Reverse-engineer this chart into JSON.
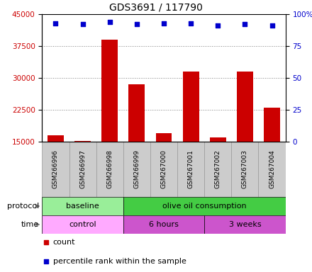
{
  "title": "GDS3691 / 117790",
  "samples": [
    "GSM266996",
    "GSM266997",
    "GSM266998",
    "GSM266999",
    "GSM267000",
    "GSM267001",
    "GSM267002",
    "GSM267003",
    "GSM267004"
  ],
  "counts": [
    16500,
    15200,
    39000,
    28500,
    17000,
    31500,
    16000,
    31500,
    23000
  ],
  "percentile_ranks": [
    93,
    92,
    94,
    92,
    93,
    93,
    91,
    92,
    91
  ],
  "ylim_left": [
    15000,
    45000
  ],
  "ylim_right": [
    0,
    100
  ],
  "yticks_left": [
    15000,
    22500,
    30000,
    37500,
    45000
  ],
  "yticks_right": [
    0,
    25,
    50,
    75,
    100
  ],
  "ytick_right_labels": [
    "0",
    "25",
    "50",
    "75",
    "100%"
  ],
  "bar_color": "#cc0000",
  "dot_color": "#0000cc",
  "protocol_groups": [
    {
      "label": "baseline",
      "start": 0,
      "end": 3,
      "color": "#99ee99"
    },
    {
      "label": "olive oil consumption",
      "start": 3,
      "end": 9,
      "color": "#44cc44"
    }
  ],
  "time_group_colors": [
    "#ffaaff",
    "#cc55cc",
    "#cc55cc"
  ],
  "time_groups": [
    {
      "label": "control",
      "start": 0,
      "end": 3
    },
    {
      "label": "6 hours",
      "start": 3,
      "end": 6
    },
    {
      "label": "3 weeks",
      "start": 6,
      "end": 9
    }
  ],
  "left_axis_color": "#cc0000",
  "right_axis_color": "#0000cc",
  "tick_bg_color": "#cccccc",
  "protocol_label": "protocol",
  "time_label": "time",
  "legend_count": "count",
  "legend_pct": "percentile rank within the sample",
  "sample_cell_border": "#999999",
  "figsize": [
    4.4,
    3.84
  ],
  "dpi": 100
}
